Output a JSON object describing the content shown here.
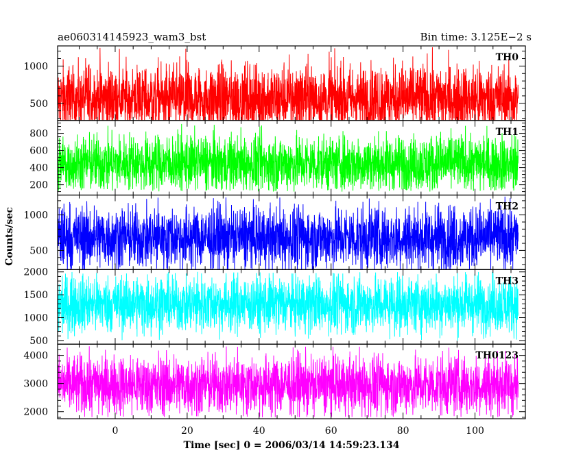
{
  "chart_data": {
    "type": "line",
    "title_left": "ae060314145923_wam3_bst",
    "title_right": "Bin time: 3.125E−2 s",
    "xlabel": "Time [sec] 0 = 2006/03/14 14:59:23.134",
    "ylabel": "Counts/sec",
    "xlim": [
      -16,
      114
    ],
    "data_x_range": [
      -16,
      112
    ],
    "x_ticks": [
      0,
      20,
      40,
      60,
      80,
      100
    ],
    "panels": [
      {
        "name": "TH0",
        "color": "#ff0000",
        "ylim": [
          270,
          1270
        ],
        "y_ticks": [
          500,
          1000
        ],
        "mean": 560,
        "noise_range": [
          170,
          1270
        ]
      },
      {
        "name": "TH1",
        "color": "#00ff00",
        "ylim": [
          80,
          950
        ],
        "y_ticks": [
          200,
          400,
          600,
          800
        ],
        "mean": 450,
        "noise_range": [
          120,
          910
        ]
      },
      {
        "name": "TH2",
        "color": "#0000ff",
        "ylim": [
          230,
          1280
        ],
        "y_ticks": [
          500,
          1000
        ],
        "mean": 680,
        "noise_range": [
          200,
          1260
        ]
      },
      {
        "name": "TH3",
        "color": "#00ffff",
        "ylim": [
          420,
          2050
        ],
        "y_ticks": [
          500,
          1000,
          1500,
          2000
        ],
        "mean": 1300,
        "noise_range": [
          500,
          2000
        ]
      },
      {
        "name": "TH0123",
        "color": "#ff00ff",
        "ylim": [
          1750,
          4400
        ],
        "y_ticks": [
          2000,
          3000,
          4000
        ],
        "mean": 2950,
        "noise_range": [
          1800,
          4350
        ]
      }
    ]
  }
}
